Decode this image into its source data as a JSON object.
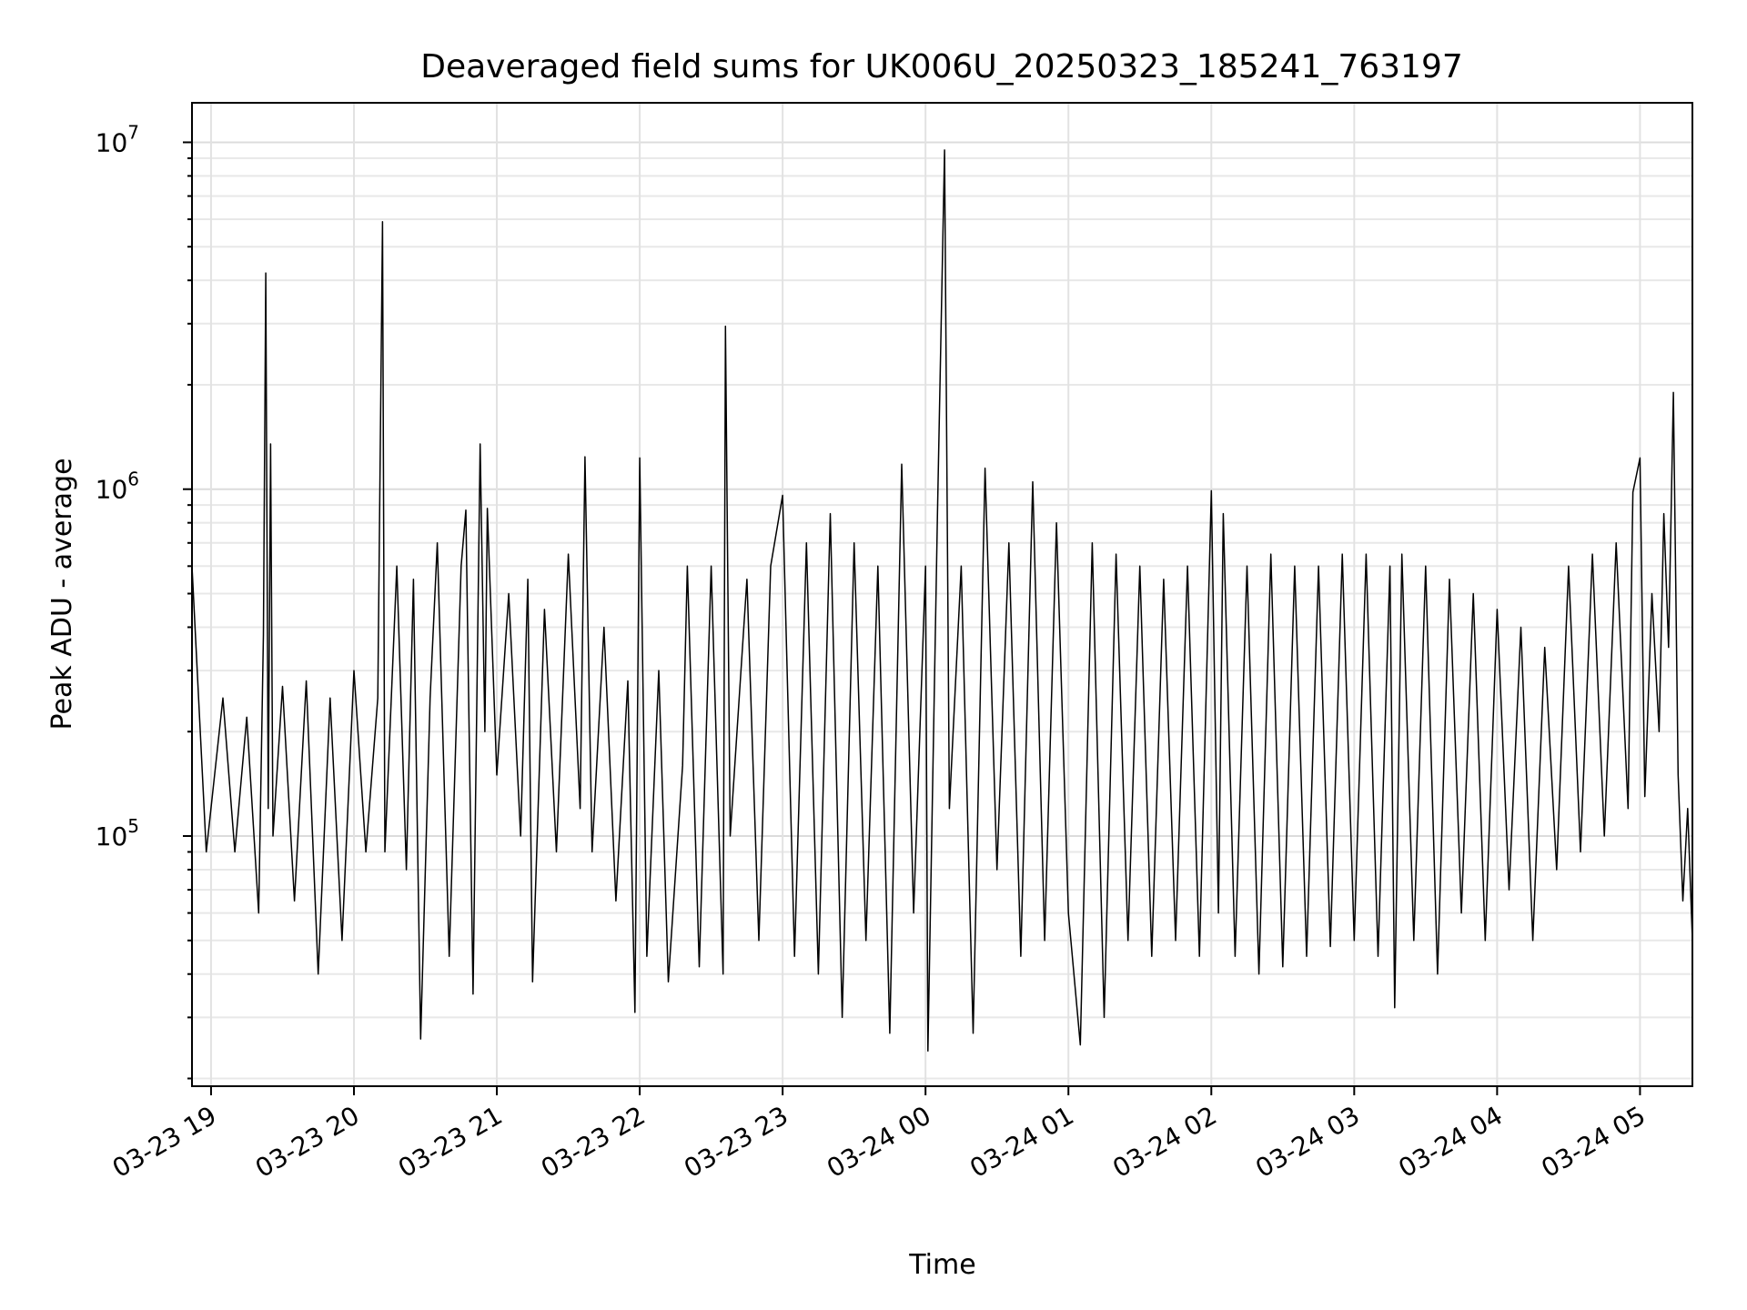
{
  "chart_data": {
    "type": "line",
    "title": "Deaveraged field sums for UK006U_20250323_185241_763197",
    "xlabel": "Time",
    "ylabel": "Peak ADU - average",
    "yscale": "log",
    "xlim": [
      "2025-03-23 18:52",
      "2025-03-24 05:22"
    ],
    "ylim": [
      19000,
      13000000
    ],
    "grid": true,
    "line_color": "#000000",
    "x_ticks": [
      "2025-03-23 19:00",
      "2025-03-23 20:00",
      "2025-03-23 21:00",
      "2025-03-23 22:00",
      "2025-03-23 23:00",
      "2025-03-24 00:00",
      "2025-03-24 01:00",
      "2025-03-24 02:00",
      "2025-03-24 03:00",
      "2025-03-24 04:00",
      "2025-03-24 05:00"
    ],
    "x_tick_labels": [
      "03-23 19",
      "03-23 20",
      "03-23 21",
      "03-23 22",
      "03-23 23",
      "03-24 00",
      "03-24 01",
      "03-24 02",
      "03-24 03",
      "03-24 04",
      "03-24 05"
    ],
    "y_ticks": [
      100000,
      1000000,
      10000000
    ],
    "y_tick_labels": [
      {
        "base": "10",
        "exp": "5"
      },
      {
        "base": "10",
        "exp": "6"
      },
      {
        "base": "10",
        "exp": "7"
      }
    ],
    "series": [
      {
        "points": [
          [
            "2025-03-23 18:52",
            600000
          ],
          [
            "2025-03-23 18:58",
            90000
          ],
          [
            "2025-03-23 19:05",
            250000
          ],
          [
            "2025-03-23 19:10",
            90000
          ],
          [
            "2025-03-23 19:15",
            220000
          ],
          [
            "2025-03-23 19:20",
            60000
          ],
          [
            "2025-03-23 19:22",
            380000
          ],
          [
            "2025-03-23 19:23",
            4200000
          ],
          [
            "2025-03-23 19:24",
            120000
          ],
          [
            "2025-03-23 19:25",
            1350000
          ],
          [
            "2025-03-23 19:26",
            100000
          ],
          [
            "2025-03-23 19:30",
            270000
          ],
          [
            "2025-03-23 19:35",
            65000
          ],
          [
            "2025-03-23 19:40",
            280000
          ],
          [
            "2025-03-23 19:45",
            40000
          ],
          [
            "2025-03-23 19:50",
            250000
          ],
          [
            "2025-03-23 19:55",
            50000
          ],
          [
            "2025-03-23 20:00",
            300000
          ],
          [
            "2025-03-23 20:05",
            90000
          ],
          [
            "2025-03-23 20:10",
            250000
          ],
          [
            "2025-03-23 20:12",
            5900000
          ],
          [
            "2025-03-23 20:13",
            90000
          ],
          [
            "2025-03-23 20:18",
            600000
          ],
          [
            "2025-03-23 20:22",
            80000
          ],
          [
            "2025-03-23 20:25",
            550000
          ],
          [
            "2025-03-23 20:28",
            26000
          ],
          [
            "2025-03-23 20:32",
            250000
          ],
          [
            "2025-03-23 20:35",
            700000
          ],
          [
            "2025-03-23 20:40",
            45000
          ],
          [
            "2025-03-23 20:45",
            600000
          ],
          [
            "2025-03-23 20:47",
            870000
          ],
          [
            "2025-03-23 20:50",
            35000
          ],
          [
            "2025-03-23 20:53",
            1350000
          ],
          [
            "2025-03-23 20:55",
            200000
          ],
          [
            "2025-03-23 20:56",
            880000
          ],
          [
            "2025-03-23 21:00",
            150000
          ],
          [
            "2025-03-23 21:05",
            500000
          ],
          [
            "2025-03-23 21:10",
            100000
          ],
          [
            "2025-03-23 21:13",
            550000
          ],
          [
            "2025-03-23 21:15",
            38000
          ],
          [
            "2025-03-23 21:20",
            450000
          ],
          [
            "2025-03-23 21:25",
            90000
          ],
          [
            "2025-03-23 21:30",
            650000
          ],
          [
            "2025-03-23 21:35",
            120000
          ],
          [
            "2025-03-23 21:37",
            1240000
          ],
          [
            "2025-03-23 21:40",
            90000
          ],
          [
            "2025-03-23 21:45",
            400000
          ],
          [
            "2025-03-23 21:50",
            65000
          ],
          [
            "2025-03-23 21:55",
            280000
          ],
          [
            "2025-03-23 21:58",
            31000
          ],
          [
            "2025-03-23 22:00",
            1230000
          ],
          [
            "2025-03-23 22:03",
            45000
          ],
          [
            "2025-03-23 22:08",
            300000
          ],
          [
            "2025-03-23 22:12",
            38000
          ],
          [
            "2025-03-23 22:18",
            160000
          ],
          [
            "2025-03-23 22:20",
            600000
          ],
          [
            "2025-03-23 22:25",
            42000
          ],
          [
            "2025-03-23 22:30",
            600000
          ],
          [
            "2025-03-23 22:35",
            40000
          ],
          [
            "2025-03-23 22:36",
            2950000
          ],
          [
            "2025-03-23 22:38",
            100000
          ],
          [
            "2025-03-23 22:45",
            550000
          ],
          [
            "2025-03-23 22:50",
            50000
          ],
          [
            "2025-03-23 22:55",
            600000
          ],
          [
            "2025-03-23 23:00",
            960000
          ],
          [
            "2025-03-23 23:05",
            45000
          ],
          [
            "2025-03-23 23:10",
            700000
          ],
          [
            "2025-03-23 23:15",
            40000
          ],
          [
            "2025-03-23 23:20",
            850000
          ],
          [
            "2025-03-23 23:25",
            30000
          ],
          [
            "2025-03-23 23:30",
            700000
          ],
          [
            "2025-03-23 23:35",
            50000
          ],
          [
            "2025-03-23 23:40",
            600000
          ],
          [
            "2025-03-23 23:45",
            27000
          ],
          [
            "2025-03-23 23:50",
            1180000
          ],
          [
            "2025-03-23 23:55",
            60000
          ],
          [
            "2025-03-24 00:00",
            600000
          ],
          [
            "2025-03-24 00:01",
            24000
          ],
          [
            "2025-03-24 00:05",
            850000
          ],
          [
            "2025-03-24 00:08",
            9500000
          ],
          [
            "2025-03-24 00:10",
            120000
          ],
          [
            "2025-03-24 00:15",
            600000
          ],
          [
            "2025-03-24 00:20",
            27000
          ],
          [
            "2025-03-24 00:25",
            1150000
          ],
          [
            "2025-03-24 00:30",
            80000
          ],
          [
            "2025-03-24 00:35",
            700000
          ],
          [
            "2025-03-24 00:40",
            45000
          ],
          [
            "2025-03-24 00:45",
            1050000
          ],
          [
            "2025-03-24 00:50",
            50000
          ],
          [
            "2025-03-24 00:55",
            800000
          ],
          [
            "2025-03-24 01:00",
            60000
          ],
          [
            "2025-03-24 01:05",
            25000
          ],
          [
            "2025-03-24 01:10",
            700000
          ],
          [
            "2025-03-24 01:15",
            30000
          ],
          [
            "2025-03-24 01:20",
            650000
          ],
          [
            "2025-03-24 01:25",
            50000
          ],
          [
            "2025-03-24 01:30",
            600000
          ],
          [
            "2025-03-24 01:35",
            45000
          ],
          [
            "2025-03-24 01:40",
            550000
          ],
          [
            "2025-03-24 01:45",
            50000
          ],
          [
            "2025-03-24 01:50",
            600000
          ],
          [
            "2025-03-24 01:55",
            45000
          ],
          [
            "2025-03-24 02:00",
            990000
          ],
          [
            "2025-03-24 02:03",
            60000
          ],
          [
            "2025-03-24 02:05",
            850000
          ],
          [
            "2025-03-24 02:10",
            45000
          ],
          [
            "2025-03-24 02:15",
            600000
          ],
          [
            "2025-03-24 02:20",
            40000
          ],
          [
            "2025-03-24 02:25",
            650000
          ],
          [
            "2025-03-24 02:30",
            42000
          ],
          [
            "2025-03-24 02:35",
            600000
          ],
          [
            "2025-03-24 02:40",
            45000
          ],
          [
            "2025-03-24 02:45",
            600000
          ],
          [
            "2025-03-24 02:50",
            48000
          ],
          [
            "2025-03-24 02:55",
            650000
          ],
          [
            "2025-03-24 03:00",
            50000
          ],
          [
            "2025-03-24 03:05",
            650000
          ],
          [
            "2025-03-24 03:10",
            45000
          ],
          [
            "2025-03-24 03:15",
            600000
          ],
          [
            "2025-03-24 03:17",
            32000
          ],
          [
            "2025-03-24 03:20",
            650000
          ],
          [
            "2025-03-24 03:25",
            50000
          ],
          [
            "2025-03-24 03:30",
            600000
          ],
          [
            "2025-03-24 03:35",
            40000
          ],
          [
            "2025-03-24 03:40",
            550000
          ],
          [
            "2025-03-24 03:45",
            60000
          ],
          [
            "2025-03-24 03:50",
            500000
          ],
          [
            "2025-03-24 03:55",
            50000
          ],
          [
            "2025-03-24 04:00",
            450000
          ],
          [
            "2025-03-24 04:05",
            70000
          ],
          [
            "2025-03-24 04:10",
            400000
          ],
          [
            "2025-03-24 04:15",
            50000
          ],
          [
            "2025-03-24 04:20",
            350000
          ],
          [
            "2025-03-24 04:25",
            80000
          ],
          [
            "2025-03-24 04:30",
            600000
          ],
          [
            "2025-03-24 04:35",
            90000
          ],
          [
            "2025-03-24 04:40",
            650000
          ],
          [
            "2025-03-24 04:45",
            100000
          ],
          [
            "2025-03-24 04:50",
            700000
          ],
          [
            "2025-03-24 04:55",
            120000
          ],
          [
            "2025-03-24 04:57",
            980000
          ],
          [
            "2025-03-24 05:00",
            1230000
          ],
          [
            "2025-03-24 05:02",
            130000
          ],
          [
            "2025-03-24 05:05",
            500000
          ],
          [
            "2025-03-24 05:08",
            200000
          ],
          [
            "2025-03-24 05:10",
            850000
          ],
          [
            "2025-03-24 05:12",
            350000
          ],
          [
            "2025-03-24 05:14",
            1900000
          ],
          [
            "2025-03-24 05:16",
            150000
          ],
          [
            "2025-03-24 05:18",
            65000
          ],
          [
            "2025-03-24 05:20",
            120000
          ],
          [
            "2025-03-24 05:22",
            50000
          ]
        ]
      }
    ]
  }
}
